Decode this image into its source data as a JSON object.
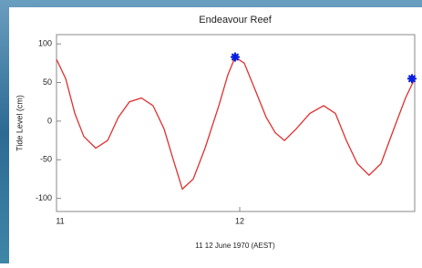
{
  "chart_data": {
    "type": "line",
    "title": "Endeavour Reef",
    "y_label": "Tide Level (cm)",
    "x_label": "11 12 June 1970 (AEST)",
    "x": [
      11,
      11.05,
      11.1,
      11.149,
      11.214,
      11.279,
      11.338,
      11.398,
      11.463,
      11.527,
      11.587,
      11.637,
      11.687,
      11.746,
      11.811,
      11.886,
      11.935,
      11.975,
      12.025,
      12.085,
      12.144,
      12.194,
      12.244,
      12.308,
      12.383,
      12.458,
      12.522,
      12.582,
      12.642,
      12.706,
      12.771,
      12.841,
      12.905,
      12.955
    ],
    "values": [
      80,
      55,
      10,
      -20,
      -35,
      -25,
      5,
      25,
      30,
      20,
      -10,
      -50,
      -88,
      -75,
      -35,
      20,
      60,
      83,
      75,
      40,
      5,
      -15,
      -25,
      -10,
      10,
      20,
      10,
      -25,
      -55,
      -70,
      -55,
      -10,
      30,
      55
    ],
    "color": "#e03030",
    "markers": {
      "x": [
        11.975,
        12.94
      ],
      "values": [
        83,
        55
      ],
      "color": "#0a1ee0"
    },
    "xlim": [
      11,
      12.955
    ],
    "xticks": [
      11,
      12
    ],
    "ylim": [
      -117,
      112
    ],
    "yticks": [
      100,
      50,
      0,
      -50,
      -100
    ]
  }
}
